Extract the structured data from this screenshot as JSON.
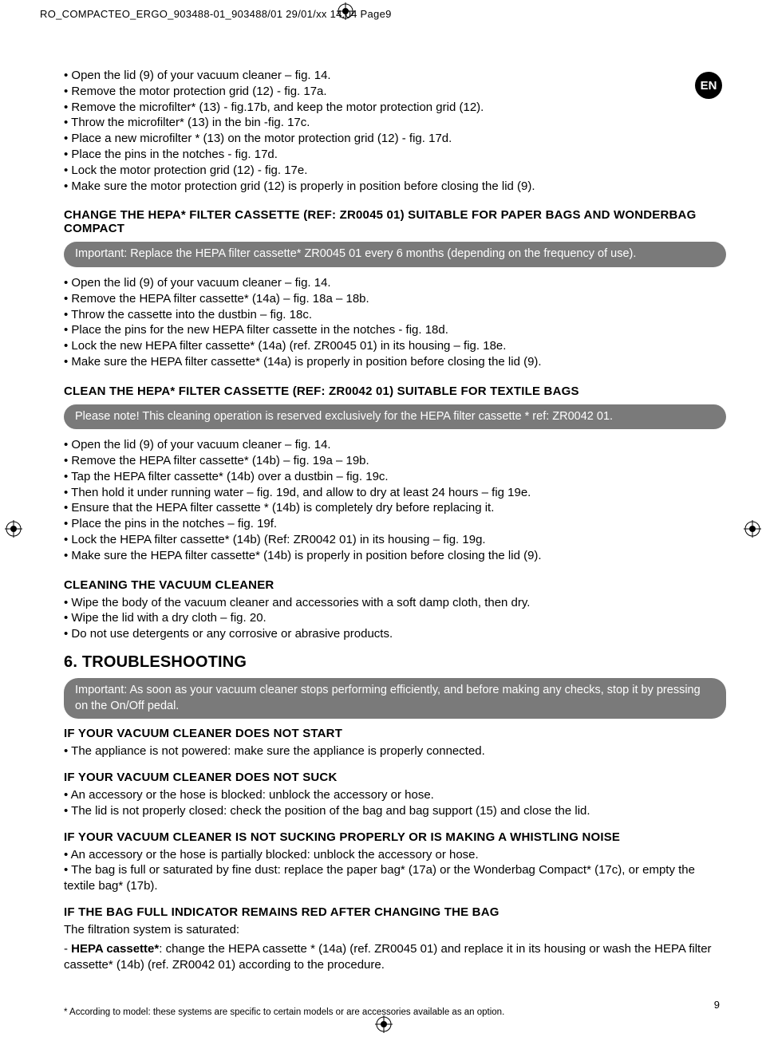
{
  "header_line": "RO_COMPACTEO_ERGO_903488-01_903488/01  29/01/xx  14:04  Page9",
  "lang_badge": "EN",
  "list1": [
    "Open the lid (9) of your vacuum cleaner – fig. 14.",
    "Remove the motor protection grid (12) - fig. 17a.",
    "Remove the microfilter* (13) - fig.17b, and keep the motor protection grid (12).",
    "Throw the microfilter* (13) in the bin -fig. 17c.",
    "Place a new microfilter * (13) on the motor protection grid (12) - fig. 17d.",
    "Place the pins in the notches - fig. 17d.",
    "Lock the motor protection grid (12) - fig. 17e.",
    "Make sure the motor protection grid (12) is properly in position before closing the lid (9)."
  ],
  "title_change_hepa": "CHANGE THE HEPA* FILTER CASSETTE (REF: ZR0045 01) SUITABLE FOR PAPER BAGS AND WONDERBAG COMPACT",
  "note_change_hepa": "Important: Replace the HEPA filter cassette* ZR0045 01 every 6 months (depending on the frequency of use).",
  "list2": [
    "Open the lid (9) of your vacuum cleaner – fig. 14.",
    "Remove the HEPA filter cassette* (14a) – fig. 18a – 18b.",
    "Throw the cassette into the dustbin – fig. 18c.",
    "Place the pins for the new HEPA filter cassette in the notches - fig. 18d.",
    "Lock the new HEPA filter cassette* (14a) (ref. ZR0045 01) in its housing – fig. 18e.",
    "Make sure the HEPA filter cassette* (14a) is properly in position before closing the lid (9)."
  ],
  "title_clean_hepa": "CLEAN THE HEPA* FILTER CASSETTE (REF: ZR0042 01) SUITABLE FOR TEXTILE BAGS",
  "note_clean_hepa": "Please note! This cleaning operation is reserved exclusively for the HEPA filter cassette * ref: ZR0042 01.",
  "list3": [
    "Open the lid (9) of your vacuum cleaner – fig. 14.",
    "Remove the HEPA filter cassette* (14b) – fig. 19a – 19b.",
    "Tap the HEPA filter cassette* (14b) over a dustbin – fig. 19c.",
    "Then hold it under running water – fig. 19d, and allow to dry at least 24 hours – fig 19e.",
    "Ensure that the HEPA filter cassette * (14b) is completely dry before replacing it.",
    "Place the pins in the notches – fig. 19f.",
    "Lock the HEPA filter cassette* (14b) (Ref: ZR0042 01) in its housing – fig. 19g.",
    "Make sure the HEPA filter cassette* (14b) is properly in position before closing the lid (9)."
  ],
  "title_cleaning_vc": "CLEANING THE VACUUM CLEANER",
  "list4": [
    "Wipe the body of the vacuum cleaner and accessories with a soft damp cloth, then dry.",
    "Wipe the lid with a dry cloth – fig. 20.",
    "Do not use detergents or any corrosive or abrasive products."
  ],
  "title_troubleshooting": "6. TROUBLESHOOTING",
  "note_troubleshooting": "Important: As soon as your vacuum cleaner stops performing efficiently, and before making any checks, stop it by pressing on the On/Off pedal.",
  "ts1_title": "IF YOUR VACUUM CLEANER DOES NOT START",
  "ts1_items": [
    "The appliance is not powered: make sure the appliance is properly connected."
  ],
  "ts2_title": "IF YOUR VACUUM CLEANER DOES NOT SUCK",
  "ts2_items": [
    "An accessory or the hose is blocked: unblock the accessory or hose.",
    "The lid is not properly closed: check the position of the bag and bag support (15) and close the lid."
  ],
  "ts3_title": "IF YOUR VACUUM CLEANER IS NOT SUCKING PROPERLY OR IS MAKING A WHISTLING NOISE",
  "ts3_items": [
    "An accessory or the hose is partially blocked: unblock the accessory or hose.",
    "The bag is full or saturated by fine dust: replace the paper bag* (17a) or the Wonderbag Compact* (17c), or empty the textile bag* (17b)."
  ],
  "ts4_title": "IF THE BAG FULL INDICATOR REMAINS RED AFTER CHANGING THE BAG",
  "ts4_line1": "The filtration system is saturated:",
  "ts4_line2_prefix": "- ",
  "ts4_line2_bold": "HEPA cassette*",
  "ts4_line2_rest": ": change the HEPA cassette * (14a) (ref. ZR0045 01) and replace it in its housing or wash the HEPA filter cassette* (14b) (ref. ZR0042 01) according to the procedure.",
  "footnote": "* According to model: these systems are specific to certain models or are accessories available as an option.",
  "page_number": "9"
}
